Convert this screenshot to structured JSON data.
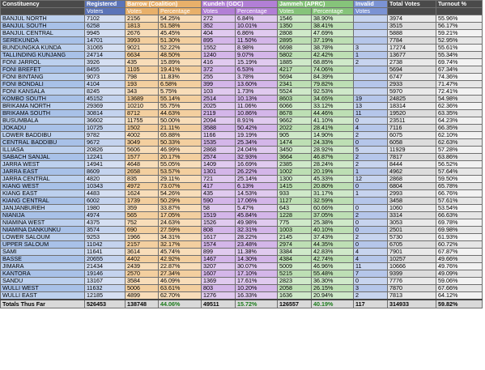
{
  "headers": {
    "constituency": "Constituency",
    "registered": "Registered",
    "barrow": "Barrow (Coalition)",
    "kundeh": "Kundeh (GDC)",
    "jammeh": "Jammeh (APRC)",
    "invalid": "Invalid",
    "total_votes": "Total Votes",
    "turnout": "Turnout %"
  },
  "subheaders": {
    "voters": "Voters",
    "votes": "Votes",
    "percentage": "Percentage",
    "invalid_votes": "Votes"
  },
  "rows": [
    [
      "BANJUL NORTH",
      "7102",
      "2156",
      "54.25%",
      "272",
      "6.84%",
      "1546",
      "38.90%",
      "",
      "3974",
      "55.96%"
    ],
    [
      "BANJUL SOUTH",
      "6258",
      "1813",
      "51.58%",
      "352",
      "10.01%",
      "1350",
      "38.41%",
      "",
      "3515",
      "56.17%"
    ],
    [
      "BANJUL CENTRAL",
      "9945",
      "2676",
      "45.45%",
      "404",
      "6.86%",
      "2808",
      "47.69%",
      "",
      "5888",
      "59.21%"
    ],
    [
      "SEREKUNDA",
      "14701",
      "3993",
      "51.30%",
      "895",
      "11.50%",
      "2895",
      "37.19%",
      "",
      "7784",
      "52.95%"
    ],
    [
      "BUNDUNGKA KUNDA",
      "31065",
      "9021",
      "52.22%",
      "1552",
      "8.98%",
      "6698",
      "38.78%",
      "3",
      "17274",
      "55.61%"
    ],
    [
      "TALLINDING KUNJANG",
      "24714",
      "6634",
      "48.50%",
      "1240",
      "9.07%",
      "5802",
      "42.42%",
      "1",
      "13677",
      "55.34%"
    ],
    [
      "FONI JARROL",
      "3926",
      "435",
      "15.89%",
      "416",
      "15.19%",
      "1885",
      "68.85%",
      "2",
      "2738",
      "69.74%"
    ],
    [
      "FONI BREFET",
      "8455",
      "1105",
      "19.41%",
      "372",
      "6.53%",
      "4217",
      "74.06%",
      "",
      "5694",
      "67.34%"
    ],
    [
      "FONI BINTANG",
      "9073",
      "798",
      "11.83%",
      "255",
      "3.78%",
      "5694",
      "84.39%",
      "",
      "6747",
      "74.36%"
    ],
    [
      "FONI BONDALI",
      "4104",
      "193",
      "6.58%",
      "399",
      "13.60%",
      "2341",
      "79.82%",
      "",
      "2933",
      "71.47%"
    ],
    [
      "FONI KANSALA",
      "8245",
      "343",
      "5.75%",
      "103",
      "1.73%",
      "5524",
      "92.53%",
      "",
      "5970",
      "72.41%"
    ],
    [
      "KOMBO SOUTH",
      "45152",
      "13689",
      "55.14%",
      "2514",
      "10.13%",
      "8603",
      "34.65%",
      "19",
      "24825",
      "54.98%"
    ],
    [
      "BRIKAMA NORTH",
      "29369",
      "10210",
      "55.75%",
      "2025",
      "11.06%",
      "6066",
      "33.12%",
      "13",
      "18314",
      "62.36%"
    ],
    [
      "BRIKAMA SOUTH",
      "30814",
      "8712",
      "44.63%",
      "2119",
      "10.86%",
      "8678",
      "44.46%",
      "11",
      "19520",
      "63.35%"
    ],
    [
      "BUSUMBALA",
      "36602",
      "11755",
      "50.00%",
      "2094",
      "8.91%",
      "9662",
      "41.10%",
      "0",
      "23511",
      "64.23%"
    ],
    [
      "JOKADU",
      "10725",
      "1502",
      "21.11%",
      "3588",
      "50.42%",
      "2022",
      "28.41%",
      "4",
      "7116",
      "66.35%"
    ],
    [
      "LOWER BADDIBU",
      "9782",
      "4002",
      "65.88%",
      "1166",
      "19.19%",
      "905",
      "14.90%",
      "2",
      "6075",
      "62.10%"
    ],
    [
      "CENTRAL BADDIBU",
      "9672",
      "3049",
      "50.33%",
      "1535",
      "25.34%",
      "1474",
      "24.33%",
      "0",
      "6058",
      "62.63%"
    ],
    [
      "ILLIASA",
      "20826",
      "5606",
      "46.99%",
      "2868",
      "24.04%",
      "3450",
      "28.92%",
      "5",
      "11929",
      "57.28%"
    ],
    [
      "SABACH SANJAL",
      "12241",
      "1577",
      "20.17%",
      "2574",
      "32.93%",
      "3664",
      "46.87%",
      "2",
      "7817",
      "63.86%"
    ],
    [
      "JARRA WEST",
      "14941",
      "4648",
      "55.05%",
      "1409",
      "16.69%",
      "2385",
      "28.24%",
      "2",
      "8444",
      "56.52%"
    ],
    [
      "JARRA EAST",
      "8609",
      "2658",
      "53.57%",
      "1301",
      "26.22%",
      "1002",
      "20.19%",
      "1",
      "4962",
      "57.64%"
    ],
    [
      "JARRA CENTRAL",
      "4820",
      "835",
      "29.11%",
      "721",
      "25.14%",
      "1300",
      "45.33%",
      "12",
      "2868",
      "59.50%"
    ],
    [
      "KIANG WEST",
      "10343",
      "4972",
      "73.07%",
      "417",
      "6.13%",
      "1415",
      "20.80%",
      "0",
      "6804",
      "65.78%"
    ],
    [
      "KIANG EAST",
      "4483",
      "1624",
      "54.26%",
      "435",
      "14.53%",
      "933",
      "31.17%",
      "1",
      "2993",
      "66.76%"
    ],
    [
      "KIANG CENTRAL",
      "6002",
      "1739",
      "50.29%",
      "590",
      "17.06%",
      "1127",
      "32.59%",
      "",
      "3458",
      "57.61%"
    ],
    [
      "JANJANBUREH",
      "1980",
      "359",
      "33.87%",
      "58",
      "5.47%",
      "643",
      "60.66%",
      "0",
      "1060",
      "53.54%"
    ],
    [
      "NIANIJA",
      "4974",
      "565",
      "17.05%",
      "1519",
      "45.84%",
      "1228",
      "37.05%",
      "2",
      "3314",
      "66.63%"
    ],
    [
      "NIAMINA WEST",
      "4375",
      "752",
      "24.63%",
      "1526",
      "49.98%",
      "775",
      "25.38%",
      "0",
      "3053",
      "69.78%"
    ],
    [
      "NIAMINA DANKUNKU",
      "3574",
      "690",
      "27.59%",
      "808",
      "32.31%",
      "1003",
      "40.10%",
      "0",
      "2501",
      "69.98%"
    ],
    [
      "LOWER SALOUM",
      "9253",
      "1966",
      "34.31%",
      "1617",
      "28.22%",
      "2145",
      "37.43%",
      "2",
      "5730",
      "61.93%"
    ],
    [
      "UPPER SALOUM",
      "11042",
      "2157",
      "32.17%",
      "1574",
      "23.48%",
      "2974",
      "44.35%",
      "0",
      "6705",
      "60.72%"
    ],
    [
      "SAMI",
      "11641",
      "3614",
      "45.74%",
      "899",
      "11.38%",
      "3384",
      "42.83%",
      "4",
      "7901",
      "67.87%"
    ],
    [
      "BASSE",
      "20655",
      "4402",
      "42.92%",
      "1467",
      "14.30%",
      "4384",
      "42.74%",
      "4",
      "10257",
      "49.66%"
    ],
    [
      "JIMARA",
      "21434",
      "2439",
      "22.87%",
      "3207",
      "30.07%",
      "5009",
      "46.96%",
      "11",
      "10666",
      "49.76%"
    ],
    [
      "KANTORA",
      "19146",
      "2570",
      "27.34%",
      "1607",
      "17.10%",
      "5215",
      "55.48%",
      "7",
      "9399",
      "49.09%"
    ],
    [
      "SANDU",
      "13167",
      "3584",
      "46.09%",
      "1369",
      "17.61%",
      "2823",
      "36.30%",
      "0",
      "7776",
      "59.06%"
    ],
    [
      "WULLI WEST",
      "11632",
      "5006",
      "63.61%",
      "803",
      "10.20%",
      "2058",
      "26.15%",
      "3",
      "7870",
      "67.66%"
    ],
    [
      "WULLI EAST",
      "12185",
      "4899",
      "62.70%",
      "1276",
      "16.33%",
      "1636",
      "20.94%",
      "2",
      "7813",
      "64.12%"
    ]
  ],
  "totals": {
    "label": "Totals Thus Far",
    "registered": "526453",
    "barrow_votes": "138748",
    "barrow_pct": "44.06%",
    "kundeh_votes": "49511",
    "kundeh_pct": "15.72%",
    "jammeh_votes": "126557",
    "jammeh_pct": "40.19%",
    "invalid": "117",
    "total_votes": "314933",
    "turnout": "59.82%"
  }
}
